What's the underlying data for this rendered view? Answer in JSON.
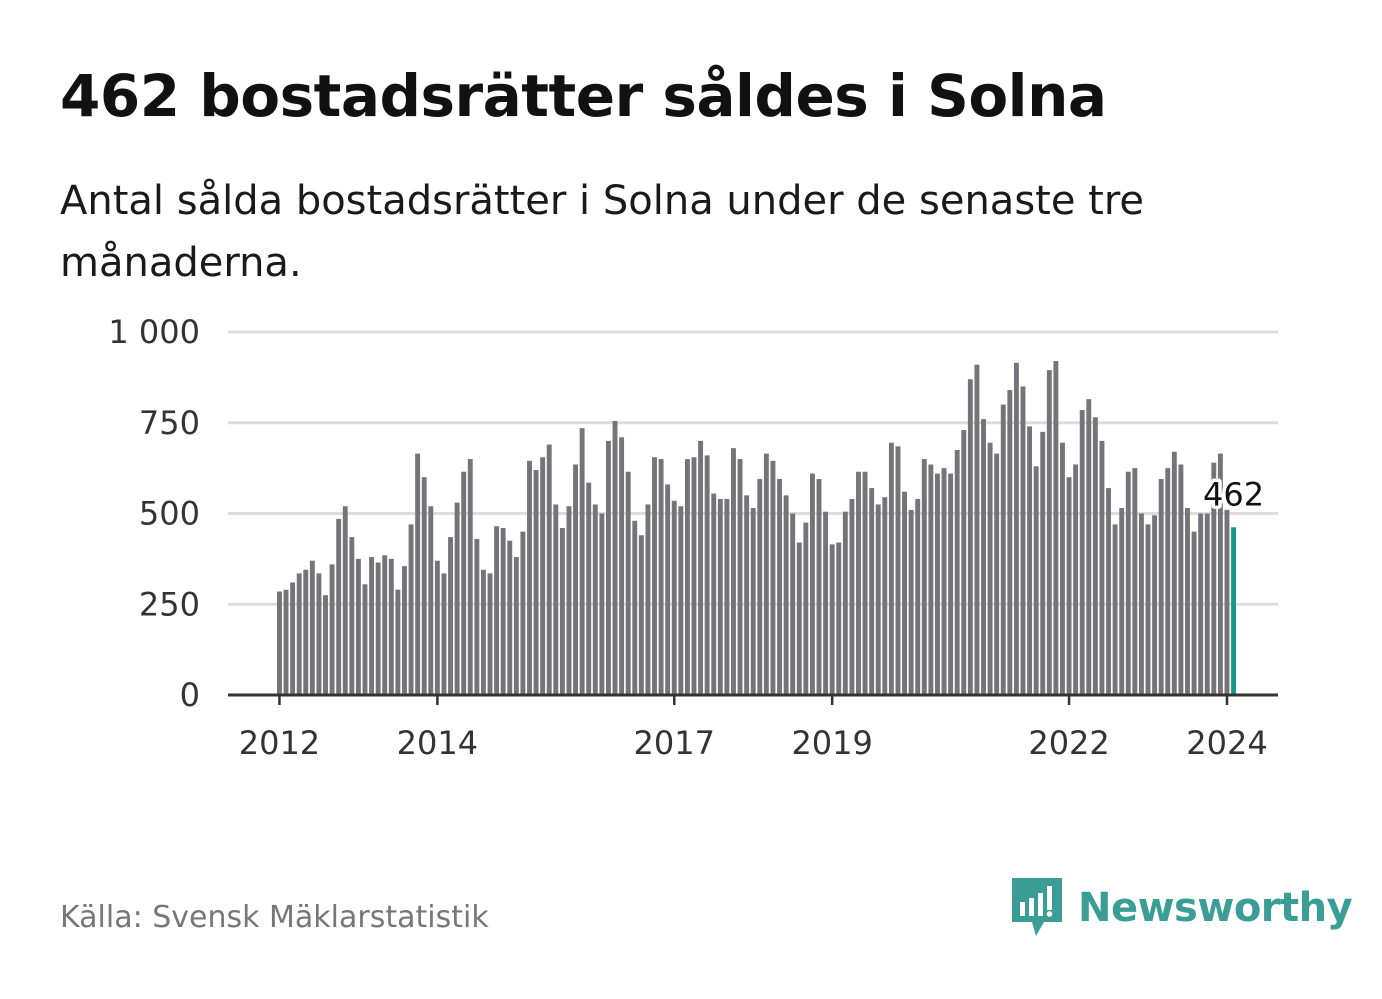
{
  "title": "462 bostadsrätter såldes i Solna",
  "subtitle": "Antal sålda bostadsrätter i Solna under de senaste tre månaderna.",
  "source": "Källa: Svensk Mäklarstatistik",
  "brand": {
    "name": "Newsworthy",
    "icon": "newsworthy-logo-icon",
    "color": "#3a9e97"
  },
  "colors": {
    "bar": "#757579",
    "highlight": "#139a8a",
    "grid": "#dddddd",
    "axis": "#333333"
  },
  "chart_data": {
    "type": "bar",
    "title": "462 bostadsrätter såldes i Solna",
    "xlabel": "",
    "ylabel": "",
    "ylim": [
      0,
      1000
    ],
    "yticks": [
      0,
      250,
      500,
      750,
      1000
    ],
    "ytick_labels": [
      "0",
      "250",
      "500",
      "750",
      "1 000"
    ],
    "xticks": [
      {
        "label": "2012",
        "index": 0
      },
      {
        "label": "2014",
        "index": 24
      },
      {
        "label": "2017",
        "index": 60
      },
      {
        "label": "2019",
        "index": 84
      },
      {
        "label": "2022",
        "index": 120
      },
      {
        "label": "2024",
        "index": 144
      }
    ],
    "start": "2012-01",
    "frequency": "monthly",
    "values": [
      285,
      290,
      310,
      335,
      345,
      370,
      335,
      275,
      360,
      485,
      520,
      435,
      375,
      305,
      380,
      365,
      385,
      375,
      290,
      355,
      470,
      665,
      600,
      520,
      370,
      335,
      435,
      530,
      615,
      650,
      430,
      345,
      335,
      465,
      460,
      425,
      380,
      450,
      645,
      620,
      655,
      690,
      525,
      460,
      520,
      635,
      735,
      585,
      525,
      500,
      700,
      755,
      710,
      615,
      480,
      440,
      525,
      655,
      650,
      580,
      535,
      520,
      650,
      655,
      700,
      660,
      555,
      540,
      540,
      680,
      650,
      550,
      515,
      595,
      665,
      645,
      595,
      550,
      500,
      420,
      475,
      610,
      595,
      505,
      415,
      420,
      505,
      540,
      615,
      615,
      570,
      525,
      545,
      695,
      685,
      560,
      510,
      540,
      650,
      635,
      610,
      625,
      610,
      675,
      730,
      870,
      910,
      760,
      695,
      665,
      800,
      840,
      915,
      850,
      740,
      630,
      725,
      895,
      920,
      695,
      600,
      635,
      785,
      815,
      765,
      700,
      570,
      470,
      515,
      615,
      625,
      500,
      470,
      495,
      595,
      625,
      670,
      635,
      515,
      450,
      500,
      500,
      640,
      665,
      510,
      462
    ],
    "highlight_index": 145,
    "highlight_label": "462"
  }
}
